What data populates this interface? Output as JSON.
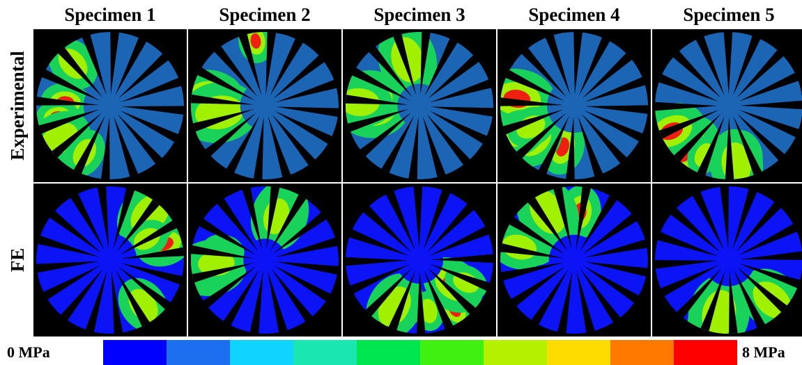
{
  "columns": [
    "Specimen 1",
    "Specimen 2",
    "Specimen 3",
    "Specimen 4",
    "Specimen 5"
  ],
  "rows": [
    "Experimental",
    "FE"
  ],
  "colorbar": {
    "min_label": "0 MPa",
    "max_label": "8 MPa"
  }
}
